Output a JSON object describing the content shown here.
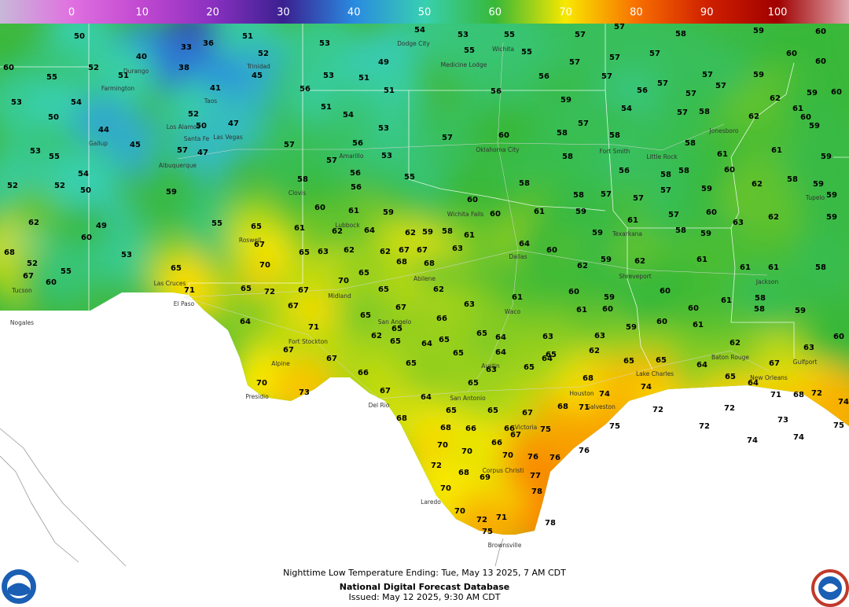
{
  "legend": {
    "ticks": [
      0,
      10,
      20,
      30,
      40,
      50,
      60,
      70,
      80,
      90,
      100
    ]
  },
  "caption": {
    "line1": "Nighttime Low Temperature Ending: Tue, May 13 2025, 7 AM CDT",
    "line2": "National Digital Forecast Database",
    "line3": "Issued: May 12 2025, 9:30 AM CDT"
  },
  "temperatures": [
    50,
    36,
    33,
    51,
    52,
    53,
    54,
    53,
    55,
    57,
    57,
    58,
    59,
    60,
    40,
    38,
    52,
    60,
    55,
    51,
    45,
    56,
    53,
    51,
    49,
    51,
    55,
    55,
    57,
    57,
    57,
    59,
    60,
    60,
    56,
    56,
    57,
    57,
    57,
    57,
    56,
    57,
    59,
    41,
    53,
    54,
    52,
    50,
    47,
    51,
    54,
    53,
    60,
    62,
    61,
    60,
    59,
    54,
    57,
    58,
    62,
    59,
    50,
    44,
    45,
    57,
    47,
    57,
    56,
    53,
    57,
    57,
    60,
    58,
    57,
    58,
    58,
    61,
    61,
    59,
    53,
    55,
    54,
    56,
    55,
    58,
    56,
    58,
    56,
    58,
    58,
    60,
    58,
    59,
    52,
    52,
    50,
    59,
    60,
    58,
    58,
    57,
    57,
    57,
    59,
    62,
    59,
    61,
    59,
    60,
    60,
    61,
    59,
    61,
    57,
    60,
    63,
    62,
    59,
    62,
    49,
    60,
    55,
    65,
    61,
    64,
    62,
    62,
    59,
    58,
    61,
    59,
    58,
    59,
    68,
    52,
    67,
    60,
    55,
    53,
    67,
    65,
    63,
    62,
    62,
    67,
    67,
    68,
    63,
    64,
    60,
    62,
    59,
    62,
    61,
    61,
    61,
    58,
    65,
    70,
    70,
    65,
    68,
    62,
    65,
    61,
    60,
    59,
    60,
    61,
    58,
    71,
    65,
    72,
    67,
    63,
    67,
    67,
    64,
    71,
    65,
    66,
    65,
    62,
    65,
    64,
    61,
    60,
    59,
    60,
    60,
    61,
    59,
    58,
    67,
    67,
    65,
    65,
    65,
    64,
    64,
    63,
    63,
    62,
    65,
    64,
    65,
    65,
    64,
    62,
    63,
    60,
    66,
    65,
    63,
    65,
    65,
    68,
    67,
    65,
    64,
    70,
    73,
    67,
    74,
    74,
    71,
    68,
    72,
    64,
    65,
    65,
    68,
    71,
    72,
    72,
    74,
    73,
    68,
    68,
    66,
    67,
    75,
    66,
    67,
    75,
    72,
    75,
    74,
    74,
    66,
    70,
    70,
    70,
    76,
    76,
    76,
    72,
    68,
    69,
    77,
    70,
    78,
    70,
    72,
    71,
    78,
    75
  ],
  "cities": [
    "Dodge City",
    "Wichita",
    "Medicine Lodge",
    "Durango",
    "Farmington",
    "Trinidad",
    "Taos",
    "Los Alamos",
    "Santa Fe",
    "Las Vegas",
    "Gallup",
    "Albuquerque",
    "Amarillo",
    "Clovis",
    "Lubbock",
    "Roswell",
    "Las Cruces",
    "El Paso",
    "Midland",
    "San Angelo",
    "Abilene",
    "Wichita Falls",
    "Dallas",
    "Shreveport",
    "Waco",
    "Austin",
    "San Antonio",
    "Houston",
    "Galveston",
    "Corpus Christi",
    "Laredo",
    "Brownsville",
    "Oklahoma City",
    "Little Rock",
    "Jackson",
    "New Orleans",
    "Baton Rouge",
    "Lake Charles",
    "Fort Smith",
    "Texarkana",
    "Del Rio",
    "Presidio",
    "Fort Stockton",
    "Tucson",
    "Nogales",
    "Alpine",
    "Victoria",
    "Jonesboro",
    "Tupelo",
    "Gulfport"
  ]
}
